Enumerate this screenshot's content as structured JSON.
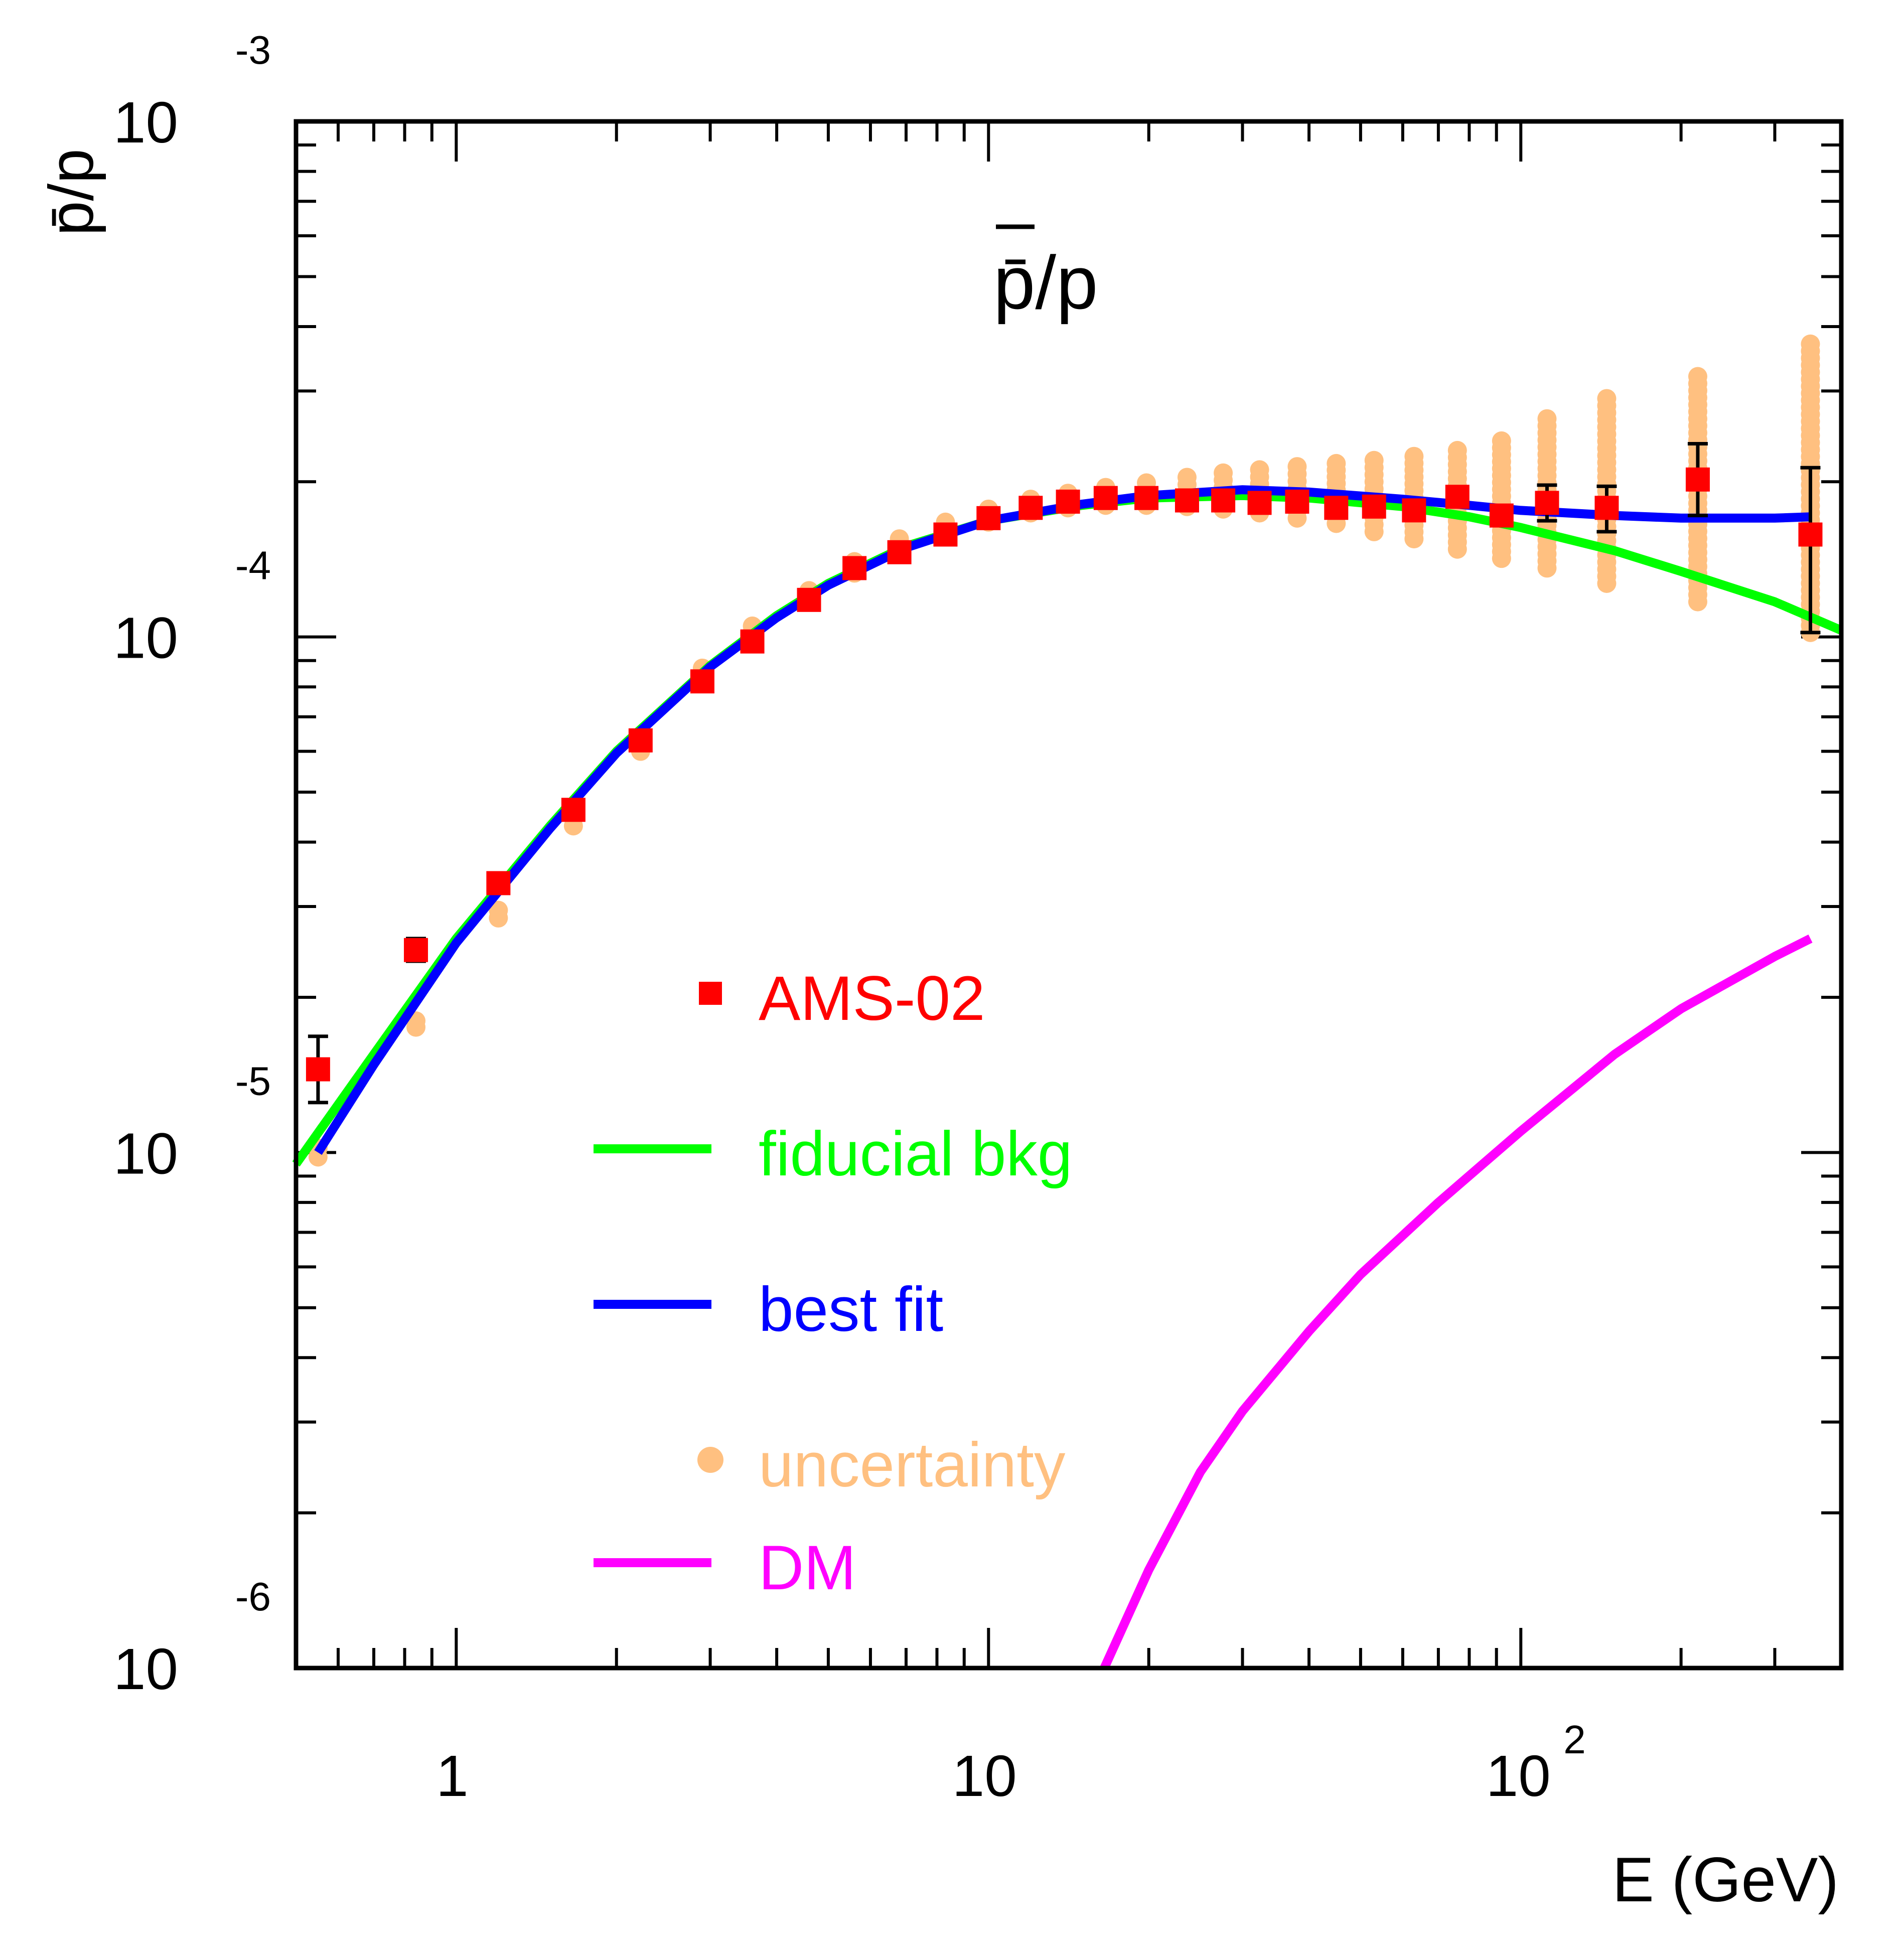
{
  "chart_data": {
    "type": "line",
    "title": "p̄/p",
    "xlabel": "E (GeV)",
    "ylabel": "p̄/p",
    "x_scale": "log",
    "y_scale": "log",
    "xlim": [
      0.5,
      400
    ],
    "ylim": [
      1e-06,
      0.001
    ],
    "x_tick_labels": [
      {
        "value": 1,
        "text": "1"
      },
      {
        "value": 10,
        "text": "10"
      },
      {
        "value": 100,
        "base": "10",
        "exp": "2"
      }
    ],
    "y_tick_labels": [
      {
        "value": 1e-06,
        "base": "10",
        "exp": "-6"
      },
      {
        "value": 1e-05,
        "base": "10",
        "exp": "-5"
      },
      {
        "value": 0.0001,
        "base": "10",
        "exp": "-4"
      },
      {
        "value": 0.001,
        "base": "10",
        "exp": "-3"
      }
    ],
    "legend": {
      "placement": "lower-center",
      "entries": [
        {
          "label": "AMS-02",
          "series": "ams02",
          "marker": "square",
          "color": "#ff0000"
        },
        {
          "label": "fiducial bkg",
          "series": "fiducial_bkg",
          "marker": "line",
          "color": "#00ff00"
        },
        {
          "label": "best fit",
          "series": "best_fit",
          "marker": "line",
          "color": "#0000ff"
        },
        {
          "label": "uncertainty",
          "series": "uncertainty",
          "marker": "circle",
          "color": "#ffc080"
        },
        {
          "label": "DM",
          "series": "dm",
          "marker": "line",
          "color": "#ff00ff"
        }
      ]
    },
    "series": [
      {
        "name": "AMS-02",
        "key": "ams02",
        "kind": "points",
        "color": "#ff0000",
        "points": [
          {
            "x": 0.55,
            "y": 1.45e-05,
            "lo": 1.25e-05,
            "hi": 1.68e-05
          },
          {
            "x": 0.84,
            "y": 2.47e-05,
            "lo": 2.35e-05,
            "hi": 2.6e-05
          },
          {
            "x": 1.2,
            "y": 3.33e-05
          },
          {
            "x": 1.66,
            "y": 4.62e-05
          },
          {
            "x": 2.22,
            "y": 6.3e-05
          },
          {
            "x": 2.9,
            "y": 8.2e-05
          },
          {
            "x": 3.6,
            "y": 9.8e-05
          },
          {
            "x": 4.6,
            "y": 0.000118
          },
          {
            "x": 5.6,
            "y": 0.000136
          },
          {
            "x": 6.8,
            "y": 0.000146
          },
          {
            "x": 8.3,
            "y": 0.000158
          },
          {
            "x": 10.0,
            "y": 0.00017
          },
          {
            "x": 12.0,
            "y": 0.000178
          },
          {
            "x": 14.1,
            "y": 0.000183
          },
          {
            "x": 16.6,
            "y": 0.000186
          },
          {
            "x": 19.8,
            "y": 0.000186
          },
          {
            "x": 23.6,
            "y": 0.000184
          },
          {
            "x": 27.6,
            "y": 0.000184
          },
          {
            "x": 32.3,
            "y": 0.000182
          },
          {
            "x": 38.0,
            "y": 0.000183
          },
          {
            "x": 45.0,
            "y": 0.000178
          },
          {
            "x": 53.0,
            "y": 0.000179
          },
          {
            "x": 63.0,
            "y": 0.000176
          },
          {
            "x": 76.0,
            "y": 0.000187
          },
          {
            "x": 92.0,
            "y": 0.000172
          },
          {
            "x": 112.0,
            "y": 0.000182,
            "lo": 0.000168,
            "hi": 0.000197
          },
          {
            "x": 145.0,
            "y": 0.000178,
            "lo": 0.00016,
            "hi": 0.000196
          },
          {
            "x": 215.0,
            "y": 0.000202,
            "lo": 0.000172,
            "hi": 0.000237
          },
          {
            "x": 350.0,
            "y": 0.000158,
            "lo": 0.000102,
            "hi": 0.000213
          }
        ]
      },
      {
        "name": "fiducial bkg",
        "key": "fiducial_bkg",
        "kind": "line",
        "color": "#00ff00",
        "x": [
          0.5,
          0.7,
          1.0,
          1.5,
          2.0,
          3.0,
          4.0,
          5.0,
          7.0,
          10.0,
          15.0,
          20.0,
          30.0,
          40.0,
          60.0,
          80.0,
          100.0,
          150.0,
          200.0,
          300.0,
          400.0
        ],
        "y": [
          9.5e-06,
          1.55e-05,
          2.6e-05,
          4.3e-05,
          6e-05,
          8.8e-05,
          0.00011,
          0.000127,
          0.00015,
          0.000168,
          0.00018,
          0.000186,
          0.000188,
          0.000186,
          0.000179,
          0.000171,
          0.000163,
          0.000147,
          0.000134,
          0.000117,
          0.000103
        ]
      },
      {
        "name": "best fit",
        "key": "best_fit",
        "kind": "line",
        "color": "#0000ff",
        "x": [
          0.55,
          0.7,
          1.0,
          1.5,
          2.0,
          3.0,
          4.0,
          5.0,
          7.0,
          10.0,
          15.0,
          20.0,
          30.0,
          40.0,
          60.0,
          80.0,
          100.0,
          150.0,
          200.0,
          300.0,
          350.0
        ],
        "y": [
          1e-05,
          1.48e-05,
          2.55e-05,
          4.25e-05,
          5.95e-05,
          8.75e-05,
          0.000109,
          0.000126,
          0.000149,
          0.000168,
          0.000181,
          0.000188,
          0.000193,
          0.000191,
          0.000185,
          0.00018,
          0.000176,
          0.000172,
          0.00017,
          0.00017,
          0.000171
        ]
      },
      {
        "name": "uncertainty",
        "key": "uncertainty",
        "kind": "band",
        "color": "#ffc080",
        "x": [
          0.55,
          0.84,
          1.2,
          1.66,
          2.22,
          2.9,
          3.6,
          4.6,
          5.6,
          6.8,
          8.3,
          10.0,
          12.0,
          14.1,
          16.6,
          19.8,
          23.6,
          27.6,
          32.3,
          38.0,
          45.0,
          53.0,
          63.0,
          76.0,
          92.0,
          112.0,
          145.0,
          215.0,
          350.0
        ],
        "lo": [
          9.8e-06,
          1.75e-05,
          2.85e-05,
          4.3e-05,
          6e-05,
          8.3e-05,
          0.0001,
          0.000117,
          0.000133,
          0.000146,
          0.000158,
          0.000167,
          0.000174,
          0.000178,
          0.00018,
          0.00018,
          0.000179,
          0.000177,
          0.000174,
          0.00017,
          0.000166,
          0.00016,
          0.000155,
          0.000148,
          0.000142,
          0.000136,
          0.000127,
          0.000117,
          0.000102
        ],
        "hi": [
          1.02e-05,
          1.8e-05,
          2.95e-05,
          4.5e-05,
          6.3e-05,
          8.7e-05,
          0.000105,
          0.000123,
          0.00014,
          0.000155,
          0.000167,
          0.000177,
          0.000185,
          0.00019,
          0.000195,
          0.000199,
          0.000204,
          0.000208,
          0.000211,
          0.000214,
          0.000217,
          0.00022,
          0.000224,
          0.00023,
          0.00024,
          0.000265,
          0.00029,
          0.00032,
          0.00037
        ]
      },
      {
        "name": "DM",
        "key": "dm",
        "kind": "line",
        "color": "#ff00ff",
        "x": [
          16.5,
          20.0,
          25.0,
          30.0,
          40.0,
          50.0,
          70.0,
          100.0,
          150.0,
          200.0,
          300.0,
          350.0
        ],
        "y": [
          1e-06,
          1.55e-06,
          2.4e-06,
          3.15e-06,
          4.5e-06,
          5.8e-06,
          8e-06,
          1.1e-05,
          1.55e-05,
          1.9e-05,
          2.4e-05,
          2.6e-05
        ]
      }
    ]
  }
}
